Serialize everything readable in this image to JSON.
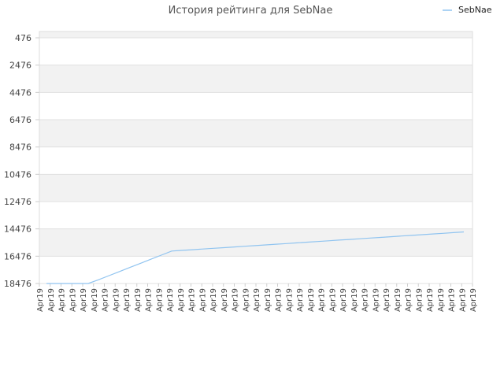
{
  "chart_data": {
    "type": "line",
    "title": "История рейтинга для SebNae",
    "xlabel": "",
    "ylabel": "",
    "y_inverted": true,
    "ylim": [
      476,
      18476
    ],
    "yticks": [
      476,
      2476,
      4476,
      6476,
      8476,
      10476,
      12476,
      14476,
      16476,
      18476
    ],
    "grid": true,
    "legend_position": "top-right",
    "categories": [
      "Apr19",
      "Apr19",
      "Apr19",
      "Apr19",
      "Apr19",
      "Apr19",
      "Apr19",
      "Apr19",
      "Apr19",
      "Apr19",
      "Apr19",
      "Apr19",
      "Apr19",
      "Apr19",
      "Apr19",
      "Apr19",
      "Apr19",
      "Apr19",
      "Apr19",
      "Apr19",
      "Apr19",
      "Apr19",
      "Apr19",
      "Apr19",
      "Apr19",
      "Apr19",
      "Apr19",
      "Apr19",
      "Apr19",
      "Apr19",
      "Apr19",
      "Apr19",
      "Apr19",
      "Apr19",
      "Apr19",
      "Apr19",
      "Apr19",
      "Apr19",
      "Apr19",
      "Apr19",
      "Apr19"
    ],
    "series": [
      {
        "name": "SebNae",
        "color": "#90c4f0",
        "values": [
          18476,
          18476,
          18476,
          18476,
          18476,
          18200,
          17900,
          17600,
          17300,
          17000,
          16700,
          16400,
          16100,
          16050,
          16000,
          15950,
          15900,
          15850,
          15800,
          15750,
          15700,
          15650,
          15600,
          15550,
          15500,
          15450,
          15400,
          15350,
          15300,
          15250,
          15200,
          15150,
          15100,
          15050,
          15000,
          14950,
          14900,
          14850,
          14800,
          14750,
          14700
        ]
      }
    ]
  }
}
